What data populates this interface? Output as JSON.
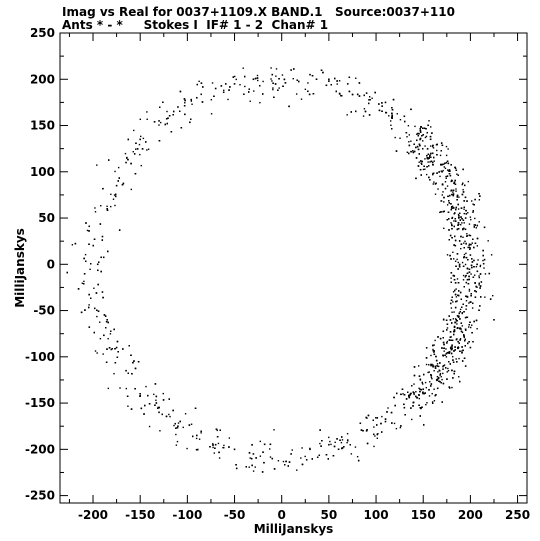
{
  "header": {
    "line1": "Imag vs Real for 0037+1109.X BAND.1   Source:0037+110",
    "line2": "Ants * - *     Stokes I  IF# 1 - 2  Chan# 1"
  },
  "chart_data": {
    "type": "scatter",
    "title": "Imag vs Real for 0037+1109.X BAND.1   Source:0037+110",
    "subtitle": "Ants * - *     Stokes I  IF# 1 - 2  Chan# 1",
    "xlabel": "MilliJanskys",
    "ylabel": "MilliJanskys",
    "xlim": [
      -235,
      260
    ],
    "ylim": [
      -258,
      250
    ],
    "xticks": [
      -200,
      -150,
      -100,
      -50,
      0,
      50,
      100,
      150,
      200,
      250
    ],
    "yticks": [
      -250,
      -200,
      -150,
      -100,
      -50,
      0,
      50,
      100,
      150,
      200,
      250
    ],
    "grid": false,
    "series": [
      {
        "marker_color": "#000000",
        "description_of_distribution": "ring of points centred near (0,0) with radius about 200 mJy; densest on the right side near x=190",
        "points": [
          [
            200,
            10
          ],
          [
            205,
            -20
          ],
          [
            190,
            30
          ],
          [
            210,
            -45
          ],
          [
            185,
            -60
          ],
          [
            215,
            5
          ],
          [
            195,
            50
          ],
          [
            180,
            80
          ],
          [
            170,
            100
          ],
          [
            160,
            120
          ],
          [
            150,
            140
          ],
          [
            130,
            160
          ],
          [
            110,
            175
          ],
          [
            90,
            185
          ],
          [
            70,
            195
          ],
          [
            50,
            200
          ],
          [
            30,
            205
          ],
          [
            10,
            210
          ],
          [
            -10,
            205
          ],
          [
            -30,
            200
          ],
          [
            -50,
            195
          ],
          [
            -70,
            190
          ],
          [
            -90,
            180
          ],
          [
            -110,
            170
          ],
          [
            -130,
            155
          ],
          [
            -150,
            135
          ],
          [
            -165,
            110
          ],
          [
            -175,
            85
          ],
          [
            -185,
            60
          ],
          [
            -190,
            30
          ],
          [
            -195,
            0
          ],
          [
            -190,
            -30
          ],
          [
            -185,
            -60
          ],
          [
            -175,
            -90
          ],
          [
            -165,
            -115
          ],
          [
            -150,
            -140
          ],
          [
            -130,
            -160
          ],
          [
            -110,
            -175
          ],
          [
            -90,
            -185
          ],
          [
            -70,
            -195
          ],
          [
            -50,
            -200
          ],
          [
            -30,
            -205
          ],
          [
            -10,
            -210
          ],
          [
            10,
            -205
          ],
          [
            30,
            -200
          ],
          [
            50,
            -195
          ],
          [
            70,
            -190
          ],
          [
            90,
            -180
          ],
          [
            110,
            -170
          ],
          [
            130,
            -155
          ],
          [
            150,
            -135
          ],
          [
            165,
            -110
          ],
          [
            175,
            -85
          ],
          [
            190,
            -70
          ],
          [
            200,
            -90
          ],
          [
            195,
            -110
          ],
          [
            205,
            70
          ],
          [
            215,
            40
          ],
          [
            220,
            -10
          ],
          [
            225,
            -60
          ]
        ]
      }
    ]
  }
}
